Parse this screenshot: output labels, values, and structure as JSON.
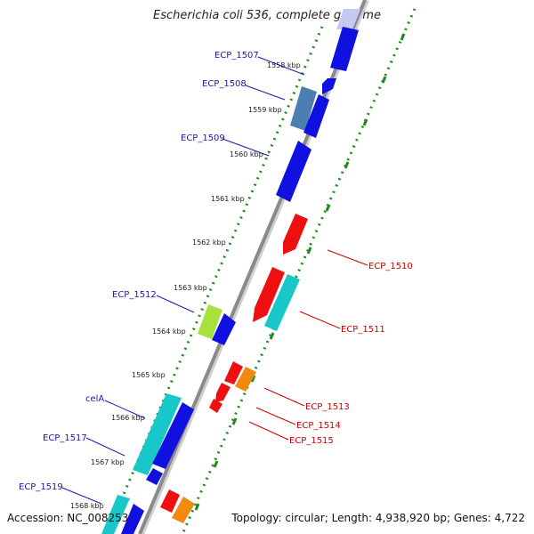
{
  "title": "Escherichia coli 536, complete genome",
  "footer": {
    "accession": "Accession: NC_008253",
    "topology": "Topology: circular; Length: 4,938,920 bp; Genes: 4,722"
  },
  "colors": {
    "backbone": "#8a8a8a",
    "ticks": "#1e8a1e",
    "label_forward": "#1a1aa8",
    "label_reverse": "#cc0000",
    "gene_blue": "#1010e0",
    "gene_steel": "#4a7fb0",
    "gene_cyan": "#18c8c8",
    "gene_red": "#ee1010",
    "gene_orange": "#f08a10",
    "gene_lime": "#a8e040"
  },
  "scale_labels": [
    "1558 kbp",
    "1559 kbp",
    "1560 kbp",
    "1561 kbp",
    "1562 kbp",
    "1563 kbp",
    "1564 kbp",
    "1565 kbp",
    "1566 kbp",
    "1567 kbp",
    "1568 kbp"
  ],
  "gene_labels_left": [
    "ECP_1507",
    "ECP_1508",
    "ECP_1509",
    "ECP_1512",
    "celA",
    "ECP_1517",
    "ECP_1519"
  ],
  "gene_labels_right": [
    "ECP_1510",
    "ECP_1511",
    "ECP_1513",
    "ECP_1514",
    "ECP_1515"
  ]
}
